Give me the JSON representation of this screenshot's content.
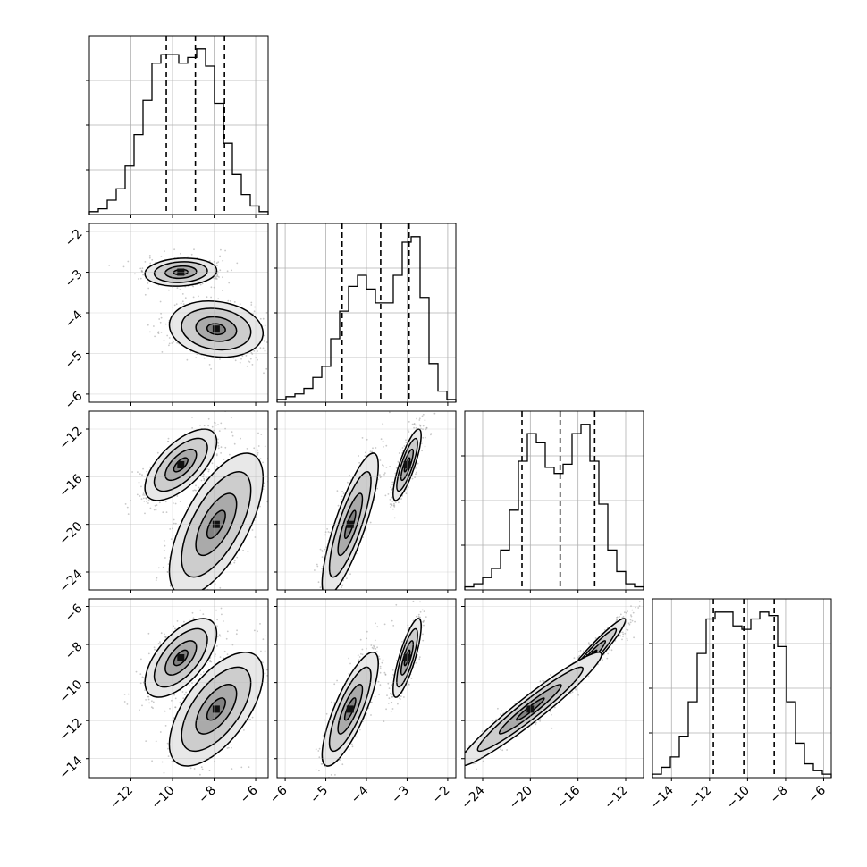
{
  "chart_data": {
    "type": "corner",
    "parameters": 4,
    "axes": [
      {
        "range": [
          -14,
          -5.4
        ],
        "ticks": [
          -12,
          -10,
          -8,
          -6
        ],
        "tick_labels": [
          "−12",
          "−10",
          "−8",
          "−6"
        ]
      },
      {
        "range": [
          -6.2,
          -1.8
        ],
        "ticks": [
          -6,
          -5,
          -4,
          -3,
          -2
        ],
        "tick_labels": [
          "−6",
          "−5",
          "−4",
          "−3",
          "−2"
        ]
      },
      {
        "range": [
          -25.5,
          -10.5
        ],
        "ticks": [
          -24,
          -20,
          -16,
          -12
        ],
        "tick_labels": [
          "−24",
          "−20",
          "−16",
          "−12"
        ]
      },
      {
        "range": [
          -15,
          -5.6
        ],
        "ticks": [
          -14,
          -12,
          -10,
          -8,
          -6
        ],
        "tick_labels": [
          "−14",
          "−12",
          "−10",
          "−8",
          "−6"
        ]
      }
    ],
    "quantiles": [
      [
        -10.3,
        -8.9,
        -7.5
      ],
      [
        -4.6,
        -3.65,
        -2.95
      ],
      [
        -20.7,
        -17.5,
        -14.6
      ],
      [
        -11.8,
        -10.2,
        -8.6
      ]
    ],
    "histograms": [
      {
        "values": [
          1,
          2,
          5,
          9,
          17,
          28,
          40,
          53,
          56,
          56,
          53,
          55,
          58,
          52,
          39,
          25,
          14,
          7,
          3,
          1
        ]
      },
      {
        "values": [
          1,
          2,
          3,
          5,
          9,
          13,
          23,
          33,
          42,
          46,
          41,
          36,
          36,
          46,
          58,
          60,
          38,
          14,
          4,
          1
        ]
      },
      {
        "values": [
          1,
          2,
          4,
          7,
          13,
          26,
          42,
          51,
          48,
          40,
          38,
          41,
          51,
          54,
          42,
          28,
          13,
          6,
          2,
          1
        ]
      },
      {
        "values": [
          1,
          3,
          6,
          12,
          22,
          36,
          46,
          48,
          48,
          44,
          43,
          46,
          48,
          47,
          38,
          22,
          10,
          4,
          2,
          1
        ]
      }
    ],
    "modes": [
      [
        -9.6,
        -3.0,
        -15.0,
        -8.7
      ],
      [
        -7.9,
        -4.4,
        -20.0,
        -11.4
      ]
    ],
    "pairs": [
      {
        "x": 0,
        "y": 1,
        "cov": [
          [
            0.75,
            0.15,
            0.12
          ],
          [
            0.98,
            0.3,
            -0.15
          ]
        ]
      },
      {
        "x": 0,
        "y": 2,
        "cov": [
          [
            0.75,
            1.3,
            0.65
          ],
          [
            0.98,
            2.6,
            0.65
          ]
        ]
      },
      {
        "x": 1,
        "y": 2,
        "cov": [
          [
            0.15,
            1.3,
            0.82
          ],
          [
            0.3,
            2.6,
            0.82
          ]
        ]
      },
      {
        "x": 0,
        "y": 3,
        "cov": [
          [
            0.75,
            0.9,
            0.62
          ],
          [
            0.98,
            1.3,
            0.62
          ]
        ]
      },
      {
        "x": 1,
        "y": 3,
        "cov": [
          [
            0.15,
            0.9,
            0.8
          ],
          [
            0.3,
            1.3,
            0.8
          ]
        ]
      },
      {
        "x": 2,
        "y": 3,
        "cov": [
          [
            1.3,
            0.9,
            0.96
          ],
          [
            2.6,
            1.3,
            0.96
          ]
        ]
      }
    ],
    "contour_levels": [
      0.35,
      1.0,
      1.7,
      2.3
    ],
    "grid": true,
    "colors": {
      "line": "#000000",
      "grid": "#b0b0b0",
      "points": "#9a9a9a"
    }
  }
}
